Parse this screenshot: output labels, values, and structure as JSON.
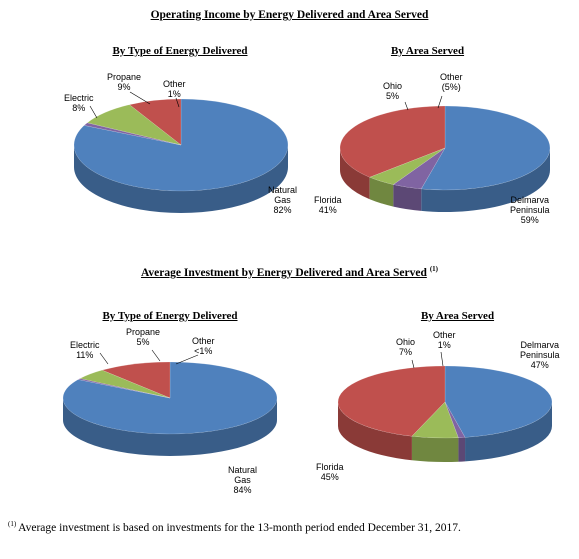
{
  "section1": {
    "title": "Operating Income by Energy Delivered and Area Served"
  },
  "section2": {
    "title": "Average Investment by Energy Delivered and Area Served",
    "note_marker": "(1)"
  },
  "colors": {
    "blue": "#4f81bd",
    "red": "#c0504d",
    "green": "#9bbb59",
    "purple": "#8064a2"
  },
  "chart_data": [
    {
      "type": "pie",
      "title": "By Type of Energy Delivered",
      "slices": [
        {
          "label": [
            "Natural",
            "Gas",
            "82%"
          ],
          "value": 82,
          "color": "#4f81bd"
        },
        {
          "label": [
            "Electric",
            "8%"
          ],
          "value": 8,
          "color": "#c0504d"
        },
        {
          "label": [
            "Propane",
            "9%"
          ],
          "value": 9,
          "color": "#9bbb59"
        },
        {
          "label": [
            "Other",
            "1%"
          ],
          "value": 1,
          "color": "#8064a2"
        }
      ]
    },
    {
      "type": "pie",
      "title": "By Area Served",
      "slices": [
        {
          "label": [
            "Delmarva",
            "Peninsula",
            "59%"
          ],
          "value": 59,
          "color": "#4f81bd"
        },
        {
          "label": [
            "Florida",
            "41%"
          ],
          "value": 41,
          "color": "#c0504d"
        },
        {
          "label": [
            "Ohio",
            "5%"
          ],
          "value": 5,
          "color": "#9bbb59"
        },
        {
          "label": [
            "Other",
            "(5%)"
          ],
          "value": -5,
          "color": "#8064a2"
        }
      ]
    },
    {
      "type": "pie",
      "title": "By Type of Energy Delivered",
      "slices": [
        {
          "label": [
            "Natural",
            "Gas",
            "84%"
          ],
          "value": 84,
          "color": "#4f81bd"
        },
        {
          "label": [
            "Electric",
            "11%"
          ],
          "value": 11,
          "color": "#c0504d"
        },
        {
          "label": [
            "Propane",
            "5%"
          ],
          "value": 5,
          "color": "#9bbb59"
        },
        {
          "label": [
            "Other",
            "<1%"
          ],
          "value": 0.5,
          "color": "#8064a2"
        }
      ]
    },
    {
      "type": "pie",
      "title": "By Area Served",
      "slices": [
        {
          "label": [
            "Delmarva",
            "Peninsula",
            "47%"
          ],
          "value": 47,
          "color": "#4f81bd"
        },
        {
          "label": [
            "Florida",
            "45%"
          ],
          "value": 45,
          "color": "#c0504d"
        },
        {
          "label": [
            "Ohio",
            "7%"
          ],
          "value": 7,
          "color": "#9bbb59"
        },
        {
          "label": [
            "Other",
            "1%"
          ],
          "value": 1,
          "color": "#8064a2"
        }
      ]
    }
  ],
  "footnote": {
    "marker": "(1)",
    "text": "Average investment is based on investments for the 13-month period ended December 31, 2017."
  }
}
